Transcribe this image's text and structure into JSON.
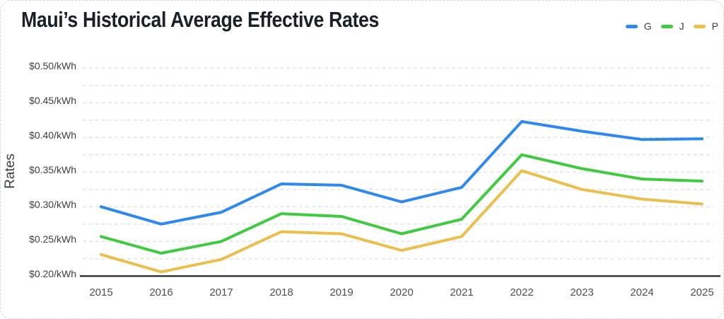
{
  "card": {
    "title": "Maui’s Historical Average Effective Rates"
  },
  "chart_data": {
    "type": "line",
    "title": "Maui’s Historical Average Effective Rates",
    "xlabel": "",
    "ylabel": "Rates",
    "categories": [
      "2015",
      "2016",
      "2017",
      "2018",
      "2019",
      "2020",
      "2021",
      "2022",
      "2023",
      "2024",
      "2025"
    ],
    "series": [
      {
        "name": "G",
        "color": "#2f88f0",
        "values": [
          0.3,
          0.275,
          0.292,
          0.333,
          0.331,
          0.307,
          0.328,
          0.423,
          0.409,
          0.397,
          0.398
        ]
      },
      {
        "name": "J",
        "color": "#3fca3f",
        "values": [
          0.257,
          0.233,
          0.25,
          0.29,
          0.286,
          0.261,
          0.282,
          0.375,
          0.355,
          0.34,
          0.337
        ]
      },
      {
        "name": "P",
        "color": "#ecbf4d",
        "values": [
          0.231,
          0.206,
          0.224,
          0.264,
          0.261,
          0.237,
          0.257,
          0.352,
          0.325,
          0.311,
          0.304
        ]
      }
    ],
    "y_ticks": [
      {
        "label": "$0.50/kWh",
        "value": 0.5
      },
      {
        "label": "$0.45/kWh",
        "value": 0.45
      },
      {
        "label": "$0.40/kWh",
        "value": 0.4
      },
      {
        "label": "$0.35/kWh",
        "value": 0.35
      },
      {
        "label": "$0.30/kWh",
        "value": 0.3
      },
      {
        "label": "$0.25/kWh",
        "value": 0.25
      },
      {
        "label": "$0.20/kWh",
        "value": 0.2
      }
    ],
    "grid_values": [
      0.5,
      0.475,
      0.45,
      0.425,
      0.4,
      0.375,
      0.35,
      0.325,
      0.3,
      0.275,
      0.25,
      0.225
    ],
    "ylim": [
      0.2,
      0.525
    ],
    "grid": "horizontal-dashed",
    "legend_position": "top-right",
    "colors": {
      "axis": "#2c2e33",
      "gridline": "#e8e9ec",
      "title_text": "#1b1f27"
    }
  }
}
